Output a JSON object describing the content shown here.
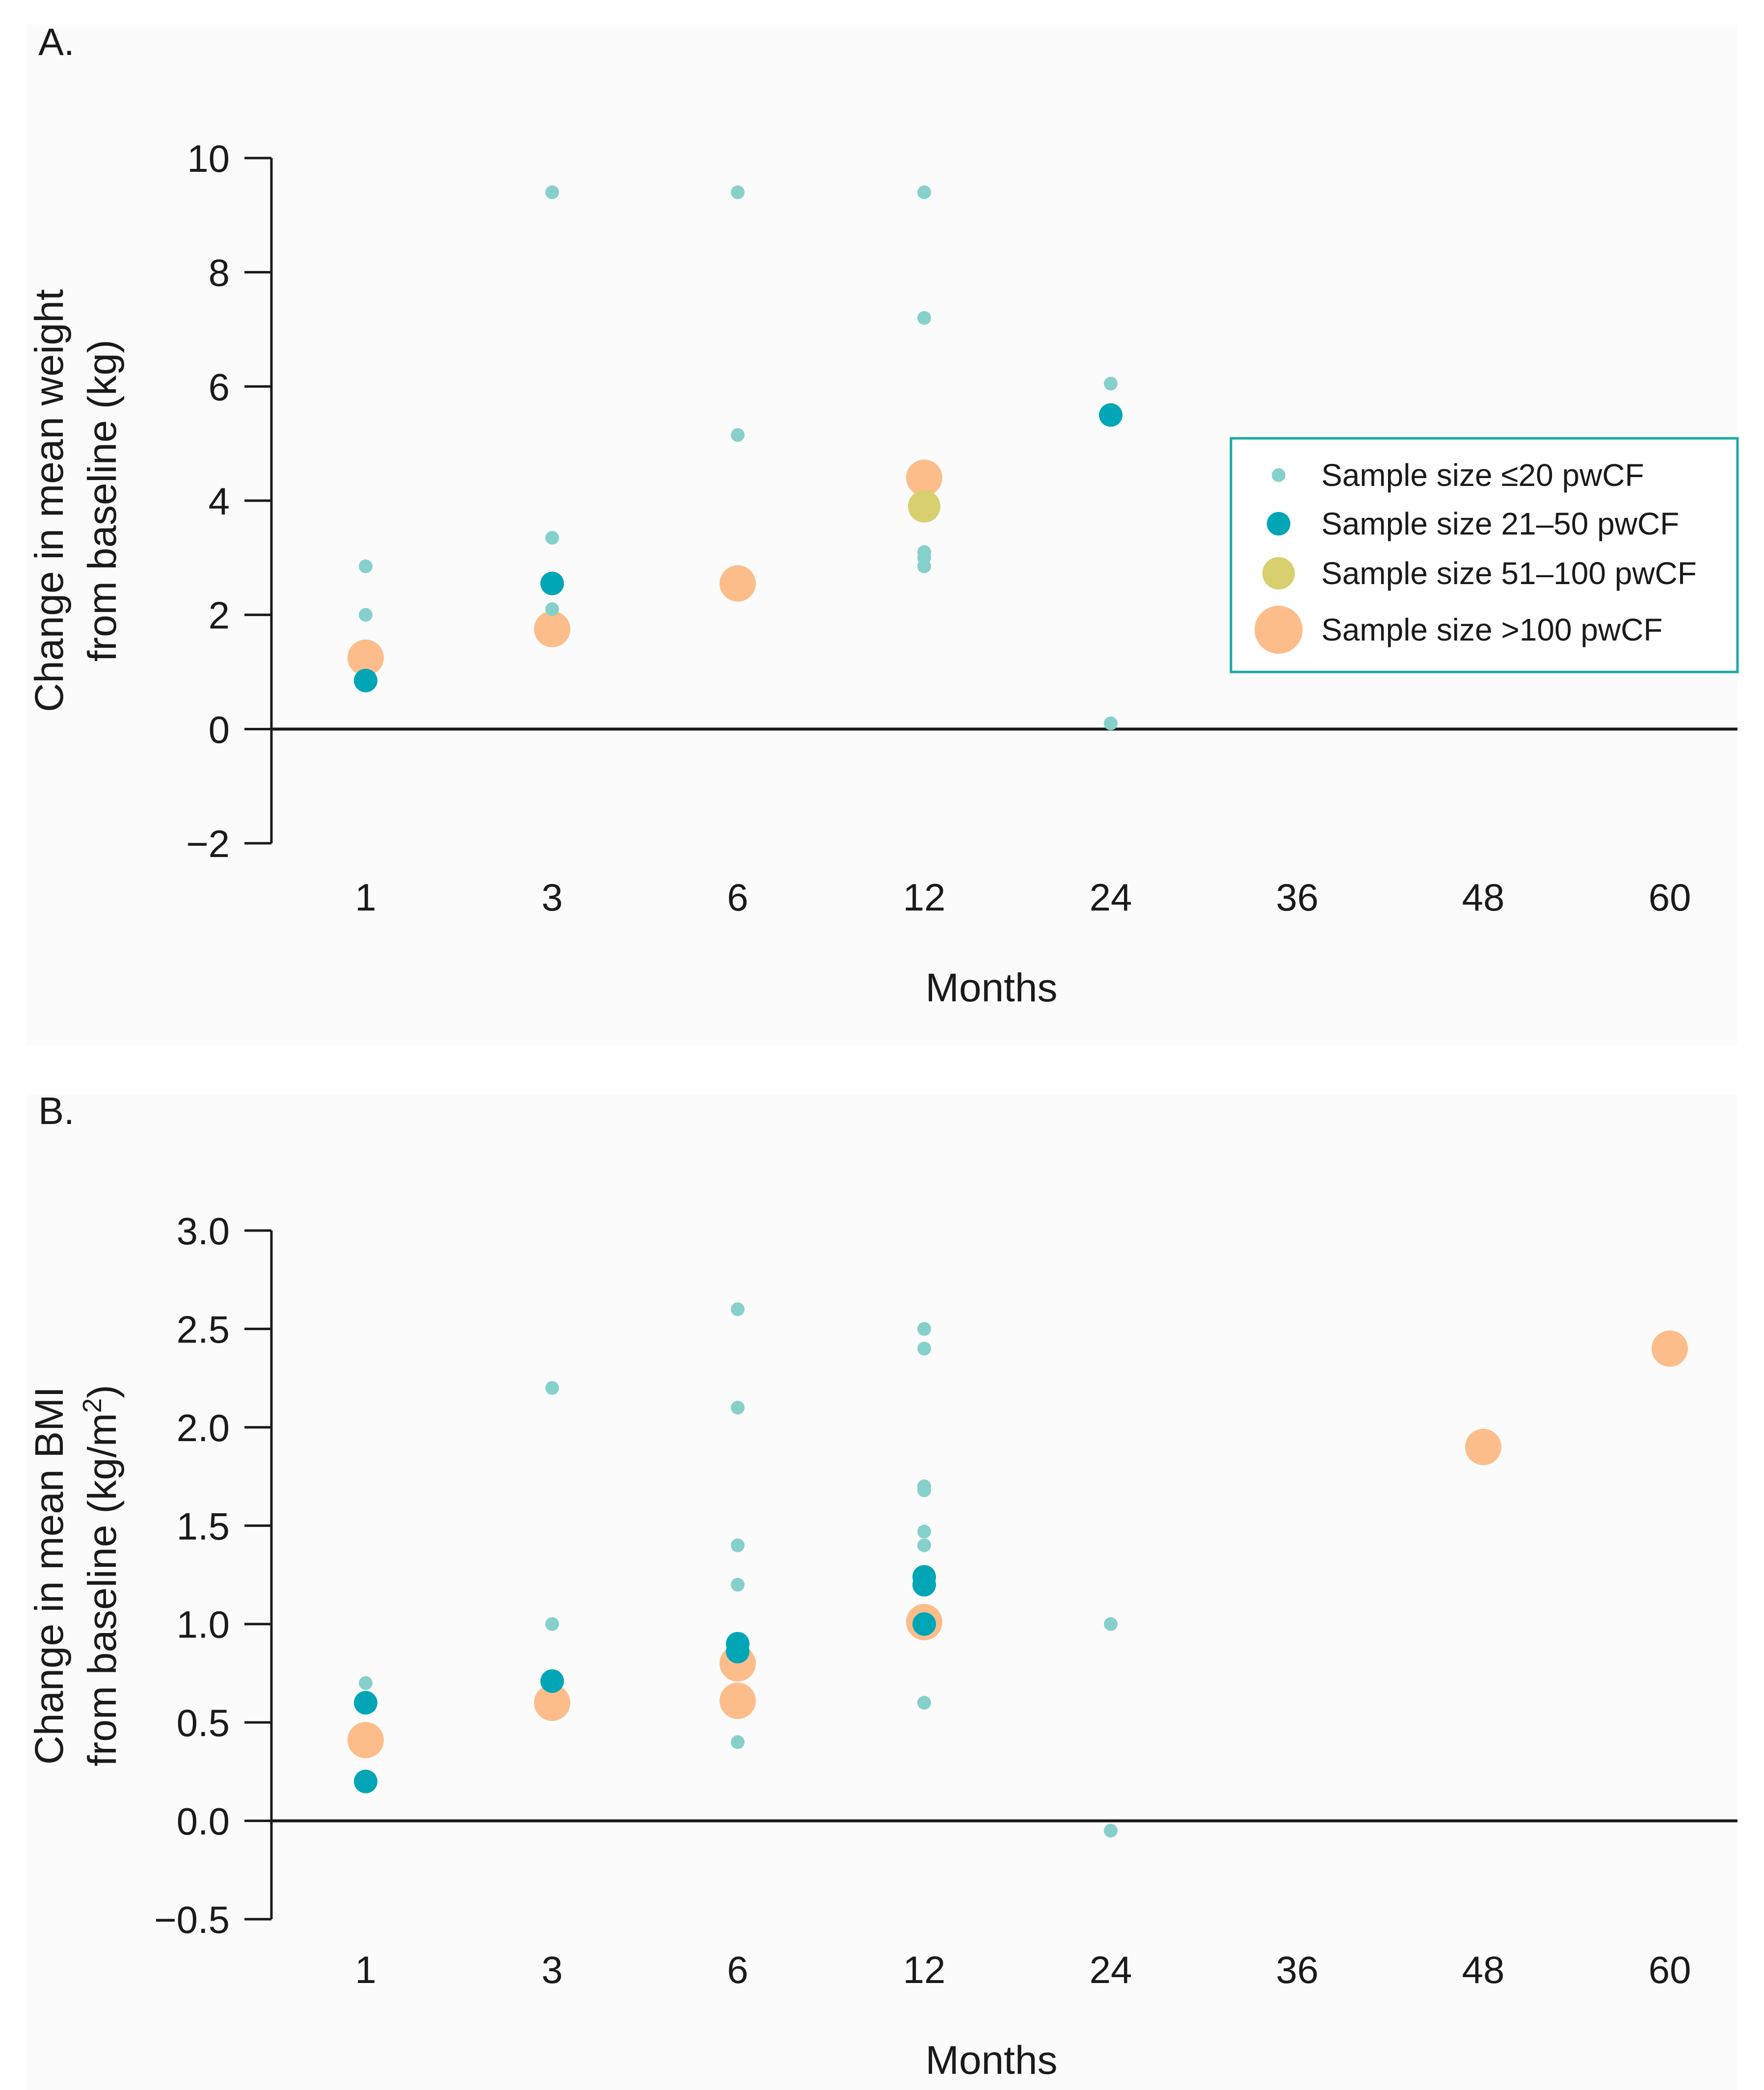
{
  "colors": {
    "background": "#ffffff",
    "panel": "#fbfbfb",
    "axis": "#1a1a1a",
    "small": "#86d0cb",
    "medium": "#00a6b6",
    "large": "#d8cf6e",
    "xlarge": "#fdbd8b",
    "legend_border": "#1aa9a3"
  },
  "legend": {
    "items": [
      {
        "key": "small",
        "label": "Sample size ≤20 pwCF"
      },
      {
        "key": "medium",
        "label": "Sample size 21–50 pwCF"
      },
      {
        "key": "large",
        "label": "Sample size 51–100 pwCF"
      },
      {
        "key": "xlarge",
        "label": "Sample size >100 pwCF"
      }
    ]
  },
  "chart_data": [
    {
      "type": "scatter",
      "panel_label": "A.",
      "title": "",
      "xlabel": "Months",
      "ylabel_line1": "Change in mean weight",
      "ylabel_line2": "from baseline (kg)",
      "categories": [
        "1",
        "3",
        "6",
        "12",
        "24",
        "36",
        "48",
        "60"
      ],
      "yticks": [
        10,
        8,
        6,
        4,
        2,
        0,
        -2
      ],
      "ytick_labels": [
        "10",
        "8",
        "6",
        "4",
        "2",
        "0",
        "−2"
      ],
      "ylim": [
        -2,
        10
      ],
      "series": [
        {
          "name": "Sample size ≤20 pwCF",
          "size": "small",
          "points": [
            {
              "x": "1",
              "y": 2.85
            },
            {
              "x": "1",
              "y": 2.0
            },
            {
              "x": "3",
              "y": 9.4
            },
            {
              "x": "3",
              "y": 3.35
            },
            {
              "x": "3",
              "y": 2.1
            },
            {
              "x": "6",
              "y": 9.4
            },
            {
              "x": "6",
              "y": 5.15
            },
            {
              "x": "12",
              "y": 9.4
            },
            {
              "x": "12",
              "y": 7.2
            },
            {
              "x": "12",
              "y": 3.1
            },
            {
              "x": "12",
              "y": 3.0
            },
            {
              "x": "12",
              "y": 2.85
            },
            {
              "x": "24",
              "y": 6.05
            },
            {
              "x": "24",
              "y": 0.1
            }
          ]
        },
        {
          "name": "Sample size 21–50 pwCF",
          "size": "medium",
          "points": [
            {
              "x": "1",
              "y": 0.85
            },
            {
              "x": "3",
              "y": 2.55
            },
            {
              "x": "24",
              "y": 5.5
            }
          ]
        },
        {
          "name": "Sample size 51–100 pwCF",
          "size": "large",
          "points": [
            {
              "x": "12",
              "y": 3.9
            }
          ]
        },
        {
          "name": "Sample size >100 pwCF",
          "size": "xlarge",
          "points": [
            {
              "x": "1",
              "y": 1.25
            },
            {
              "x": "3",
              "y": 1.75
            },
            {
              "x": "6",
              "y": 2.55
            },
            {
              "x": "12",
              "y": 4.4
            }
          ]
        }
      ]
    },
    {
      "type": "scatter",
      "panel_label": "B.",
      "title": "",
      "xlabel": "Months",
      "ylabel_line1": "Change in mean BMI",
      "ylabel_line2": "from baseline (kg/m",
      "ylabel_sup": "2",
      "ylabel_close": ")",
      "categories": [
        "1",
        "3",
        "6",
        "12",
        "24",
        "36",
        "48",
        "60"
      ],
      "yticks": [
        3.0,
        2.5,
        2.0,
        1.5,
        1.0,
        0.5,
        0.0,
        -0.5
      ],
      "ytick_labels": [
        "3.0",
        "2.5",
        "2.0",
        "1.5",
        "1.0",
        "0.5",
        "0.0",
        "−0.5"
      ],
      "ylim": [
        -0.5,
        3.0
      ],
      "series": [
        {
          "name": "Sample size ≤20 pwCF",
          "size": "small",
          "points": [
            {
              "x": "1",
              "y": 0.7
            },
            {
              "x": "3",
              "y": 2.2
            },
            {
              "x": "3",
              "y": 1.0
            },
            {
              "x": "6",
              "y": 2.6
            },
            {
              "x": "6",
              "y": 2.1
            },
            {
              "x": "6",
              "y": 1.4
            },
            {
              "x": "6",
              "y": 1.2
            },
            {
              "x": "6",
              "y": 0.4
            },
            {
              "x": "12",
              "y": 2.5
            },
            {
              "x": "12",
              "y": 2.4
            },
            {
              "x": "12",
              "y": 1.7
            },
            {
              "x": "12",
              "y": 1.68
            },
            {
              "x": "12",
              "y": 1.47
            },
            {
              "x": "12",
              "y": 1.4
            },
            {
              "x": "12",
              "y": 0.6
            },
            {
              "x": "24",
              "y": 1.0
            },
            {
              "x": "24",
              "y": -0.05
            }
          ]
        },
        {
          "name": "Sample size 21–50 pwCF",
          "size": "medium",
          "points": [
            {
              "x": "1",
              "y": 0.6
            },
            {
              "x": "1",
              "y": 0.2
            },
            {
              "x": "3",
              "y": 0.71
            },
            {
              "x": "6",
              "y": 0.9
            },
            {
              "x": "6",
              "y": 0.86
            },
            {
              "x": "12",
              "y": 1.24
            },
            {
              "x": "12",
              "y": 1.2
            },
            {
              "x": "12",
              "y": 1.0
            }
          ]
        },
        {
          "name": "Sample size 51–100 pwCF",
          "size": "large",
          "points": []
        },
        {
          "name": "Sample size >100 pwCF",
          "size": "xlarge",
          "points": [
            {
              "x": "1",
              "y": 0.41
            },
            {
              "x": "3",
              "y": 0.6
            },
            {
              "x": "6",
              "y": 0.8
            },
            {
              "x": "6",
              "y": 0.61
            },
            {
              "x": "12",
              "y": 1.01
            },
            {
              "x": "48",
              "y": 1.9
            },
            {
              "x": "60",
              "y": 2.4
            }
          ]
        }
      ]
    }
  ]
}
